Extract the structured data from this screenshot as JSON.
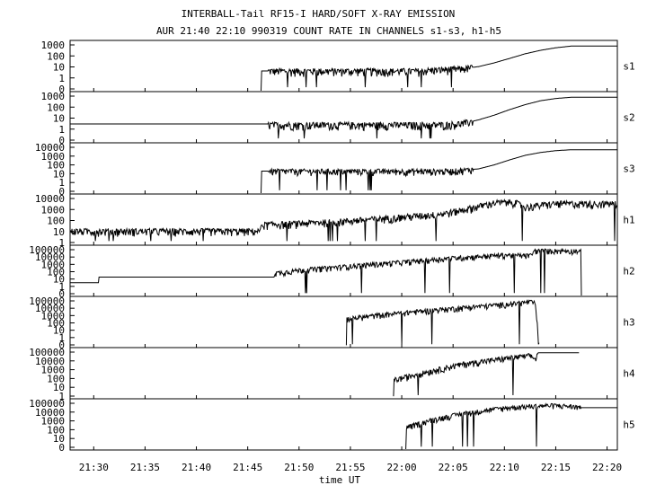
{
  "chart_data": {
    "type": "line",
    "title": "INTERBALL-Tail RF15-I HARD/SOFT X-RAY EMISSION",
    "subtitle": "AUR 21:40 22:10 990319  COUNT RATE IN CHANNELS s1-s3, h1-h5",
    "xlabel": "time UT",
    "x_ticks": [
      "21:30",
      "21:35",
      "21:40",
      "21:45",
      "21:50",
      "21:55",
      "22:00",
      "22:05",
      "22:10",
      "22:15",
      "22:20"
    ],
    "x_tick_minutes": [
      30,
      35,
      40,
      45,
      50,
      55,
      60,
      65,
      70,
      75,
      80
    ],
    "xlim_minutes_after_2100": [
      27.7,
      81.0
    ],
    "y_scale": "log",
    "grid": false,
    "panels": [
      {
        "name": "s1",
        "ylabel_ticks": [
          "1000",
          "100",
          "10",
          "1",
          "0"
        ],
        "ylim": [
          0.1,
          1800
        ],
        "series": [
          {
            "x": [
              27.7,
              46.3
            ],
            "y": null
          },
          {
            "x": [
              46.3,
              46.3,
              61.5,
              63.0,
              64.5,
              66.0,
              67.5,
              69.0,
              70.5,
              72.0,
              73.5,
              75.0,
              76.5,
              81.0
            ],
            "y": [
              0.1,
              5,
              5,
              6,
              7,
              8,
              12,
              25,
              60,
              150,
              300,
              500,
              700,
              700
            ],
            "noise_start": 47.0,
            "noise_end": 67.0
          }
        ]
      },
      {
        "name": "s2",
        "ylabel_ticks": [
          "1000",
          "100",
          "10",
          "1",
          "0"
        ],
        "ylim": [
          0.1,
          1800
        ],
        "series": [
          {
            "x": [
              27.7,
              47.0,
              47.0,
              64.0,
              66.0,
              67.5,
              69.0,
              70.5,
              72.0,
              73.5,
              75.0,
              76.5,
              81.0
            ],
            "y": [
              3.5,
              3.5,
              3,
              3,
              4,
              8,
              20,
              60,
              160,
              350,
              550,
              700,
              700
            ],
            "noise_start": 47.0,
            "noise_end": 67.0
          }
        ]
      },
      {
        "name": "s3",
        "ylabel_ticks": [
          "10000",
          "1000",
          "100",
          "10",
          "1",
          "0"
        ],
        "ylim": [
          0.1,
          15000
        ],
        "series": [
          {
            "x": [
              46.3,
              46.3,
              64.0,
              66.0,
              67.5,
              69.0,
              70.5,
              72.0,
              73.5,
              75.0,
              76.5,
              81.0
            ],
            "y": [
              0.1,
              20,
              20,
              25,
              35,
              90,
              300,
              900,
              1800,
              2800,
              3500,
              3500
            ],
            "noise_start": 47.0,
            "noise_end": 67.0
          }
        ]
      },
      {
        "name": "h1",
        "ylabel_ticks": [
          "10000",
          "1000",
          "100",
          "10",
          "1"
        ],
        "ylim": [
          0.5,
          15000
        ],
        "series": [
          {
            "x": [
              27.7,
              46.3,
              46.3,
              50.0,
              55.0,
              60.0,
              64.0,
              66.0,
              69.0,
              71.0,
              72.0,
              73.5,
              75.0,
              81.0
            ],
            "y": [
              8,
              8,
              30,
              40,
              70,
              150,
              300,
              700,
              3000,
              3500,
              1200,
              1800,
              2500,
              2500
            ],
            "noise_start": 27.7,
            "noise_end": 81.0
          }
        ]
      },
      {
        "name": "h2",
        "ylabel_ticks": [
          "100000",
          "10000",
          "1000",
          "100",
          "10",
          "1",
          "0"
        ],
        "ylim": [
          0.1,
          150000
        ],
        "series": [
          {
            "x": [
              27.7,
              30.5,
              30.5,
              47.6,
              47.6,
              50.0,
              55.0,
              60.0,
              65.0,
              70.0,
              72.5,
              73.0,
              77.0,
              77.5,
              77.5
            ],
            "y": [
              4,
              4,
              20,
              20,
              60,
              150,
              500,
              1500,
              5000,
              12000,
              10000,
              40000,
              40000,
              30000,
              0.1
            ],
            "noise_start": 47.6,
            "noise_end": 77.5
          }
        ]
      },
      {
        "name": "h3",
        "ylabel_ticks": [
          "100000",
          "10000",
          "1000",
          "100",
          "10",
          "1",
          "0"
        ],
        "ylim": [
          0.1,
          150000
        ],
        "series": [
          {
            "x": [
              54.6,
              54.6,
              58.0,
              62.0,
              66.0,
              70.0,
              72.5,
              73.0,
              73.4
            ],
            "y": [
              0.1,
              300,
              1000,
              3000,
              8000,
              20000,
              40000,
              30000,
              0.1
            ],
            "noise_start": 54.6,
            "noise_end": 73.4
          }
        ]
      },
      {
        "name": "h4",
        "ylabel_ticks": [
          "100000",
          "10000",
          "1000",
          "100",
          "10",
          "1"
        ],
        "ylim": [
          0.5,
          150000
        ],
        "series": [
          {
            "x": [
              59.2,
              59.2,
              62.0,
              66.0,
              70.0,
              72.5,
              73.0,
              73.3,
              77.3,
              77.3
            ],
            "y": [
              0.5,
              50,
              300,
              3000,
              12000,
              25000,
              10000,
              50000,
              50000,
              0.5
            ],
            "noise_start": 59.2,
            "noise_end": 73.3
          }
        ]
      },
      {
        "name": "h5",
        "ylabel_ticks": [
          "100000",
          "10000",
          "1000",
          "100",
          "10",
          "0"
        ],
        "ylim": [
          0.1,
          150000
        ],
        "series": [
          {
            "x": [
              60.4,
              60.4,
              63.0,
              66.0,
              69.0,
              71.0,
              73.0,
              75.0,
              77.0,
              77.5,
              81.0
            ],
            "y": [
              0.1,
              50,
              500,
              3000,
              10000,
              18000,
              25000,
              30000,
              20000,
              15000,
              15000
            ],
            "noise_start": 60.4,
            "noise_end": 77.5
          }
        ]
      }
    ]
  }
}
